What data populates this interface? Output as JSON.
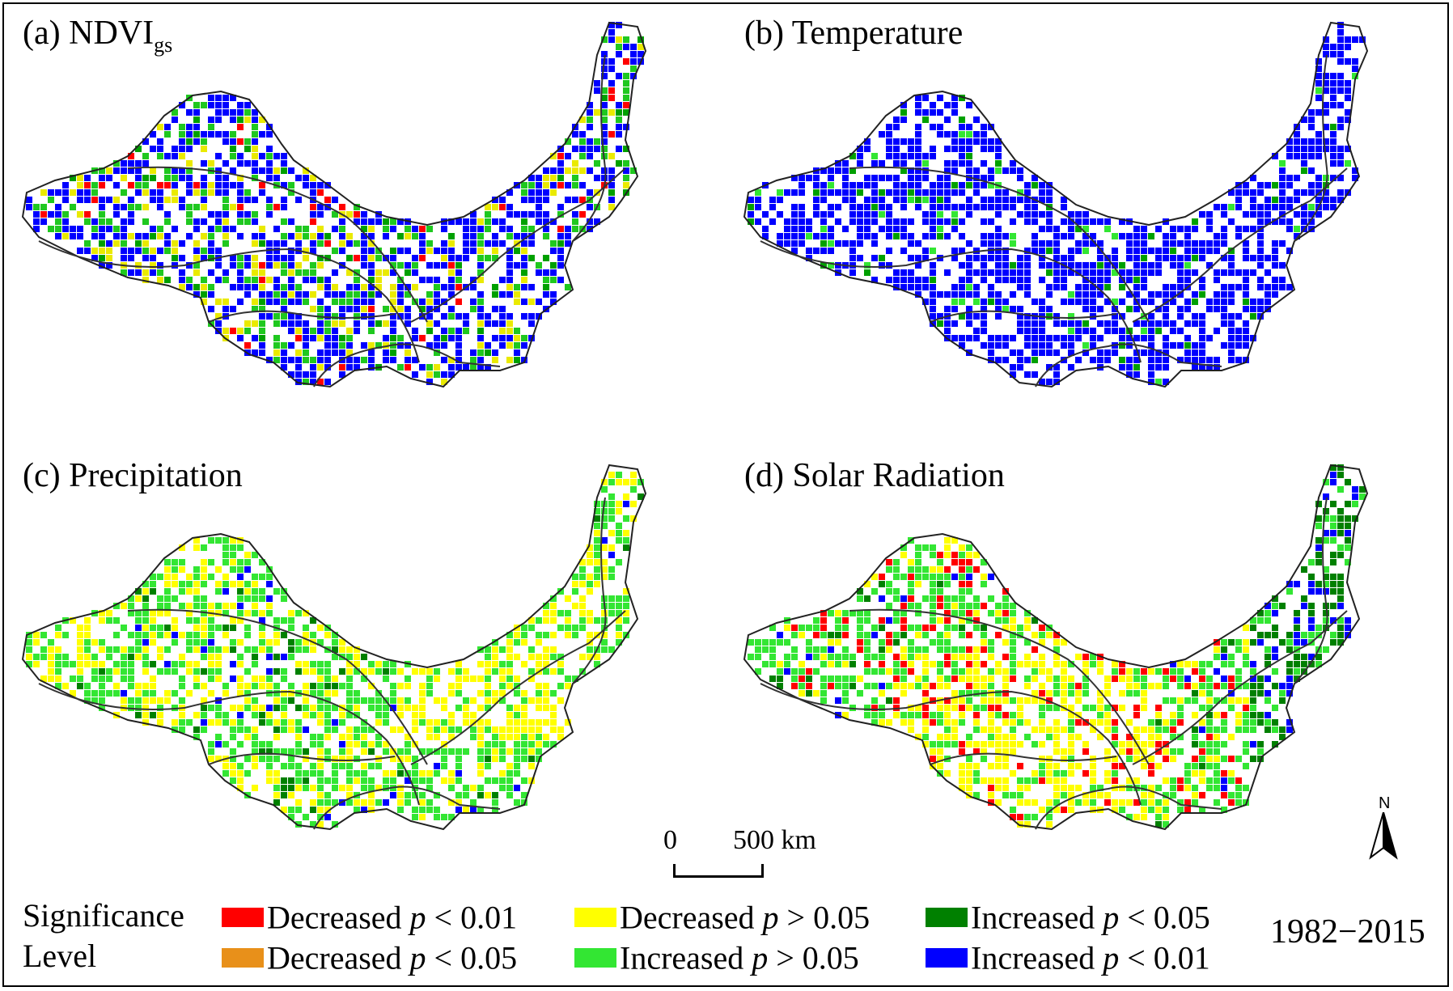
{
  "panels": [
    {
      "id": "a",
      "title_prefix": "(a) NDVI",
      "title_sub": "gs",
      "palette": [
        "#0000ff",
        "#1fc81f",
        "#eaea00",
        "#00a000",
        "#ff0000"
      ]
    },
    {
      "id": "b",
      "title_prefix": "(b) Temperature",
      "title_sub": "",
      "palette": [
        "#0000ff",
        "#0000ff",
        "#0000ff",
        "#00a000",
        "#33e633"
      ]
    },
    {
      "id": "c",
      "title_prefix": "(c) Precipitation",
      "title_sub": "",
      "palette": [
        "#33e633",
        "#ffff00",
        "#ffff00",
        "#008000",
        "#0000ff"
      ]
    },
    {
      "id": "d",
      "title_prefix": "(d) Solar Radiation",
      "title_sub": "",
      "palette": [
        "#33e633",
        "#ffff00",
        "#ff0000",
        "#008000",
        "#0000ff"
      ]
    }
  ],
  "scalebar": {
    "start": "0",
    "end": "500 km"
  },
  "north_label": "N",
  "legend": {
    "title_line1": "Significance",
    "title_line2": "Level",
    "items": [
      {
        "label": "Decreased ",
        "p": "p",
        "cond": " < 0.01",
        "color": "#ff0000"
      },
      {
        "label": "Decreased ",
        "p": "p",
        "cond": " < 0.05",
        "color": "#e8901a"
      },
      {
        "label": "Decreased ",
        "p": "p",
        "cond": " > 0.05",
        "color": "#ffff00"
      },
      {
        "label": "Increased ",
        "p": "p",
        "cond": " > 0.05",
        "color": "#33e633"
      },
      {
        "label": "Increased ",
        "p": "p",
        "cond": " < 0.05",
        "color": "#008000"
      },
      {
        "label": "Increased ",
        "p": "p",
        "cond": " < 0.01",
        "color": "#0000ff"
      }
    ]
  },
  "period": "1982−2015"
}
